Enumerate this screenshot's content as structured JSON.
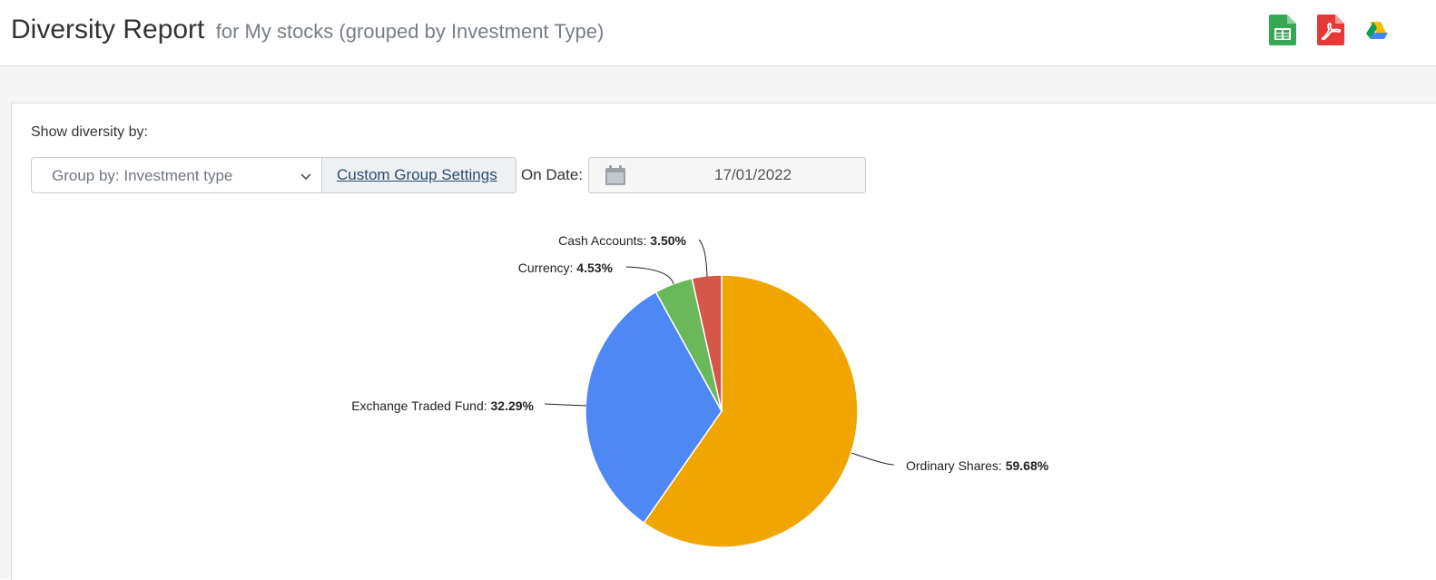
{
  "header": {
    "title": "Diversity Report",
    "subtitle": "for My stocks (grouped by Investment Type)",
    "export_icons": [
      {
        "icon": "google-sheets-icon",
        "color": "#34a853"
      },
      {
        "icon": "pdf-icon",
        "color": "#e53935"
      },
      {
        "icon": "google-drive-icon",
        "color": "#4285f4"
      }
    ]
  },
  "controls": {
    "show_label": "Show diversity by:",
    "group_by_value": "Group by: Investment type",
    "custom_group_label": "Custom Group Settings",
    "on_date_label": "On Date:",
    "date_value": "17/01/2022",
    "calendar_icon": "calendar-icon"
  },
  "chart_data": {
    "type": "pie",
    "slices": [
      {
        "name": "Ordinary Shares",
        "value": 59.68,
        "label": "59.68%",
        "color": "#f0a500"
      },
      {
        "name": "Exchange Traded Fund",
        "value": 32.29,
        "label": "32.29%",
        "color": "#4d88f5"
      },
      {
        "name": "Currency",
        "value": 4.53,
        "label": "4.53%",
        "color": "#6ab85a"
      },
      {
        "name": "Cash Accounts",
        "value": 3.5,
        "label": "3.50%",
        "color": "#d5574a"
      }
    ],
    "start": "12 o'clock",
    "direction": "clockwise",
    "legend": "none"
  }
}
